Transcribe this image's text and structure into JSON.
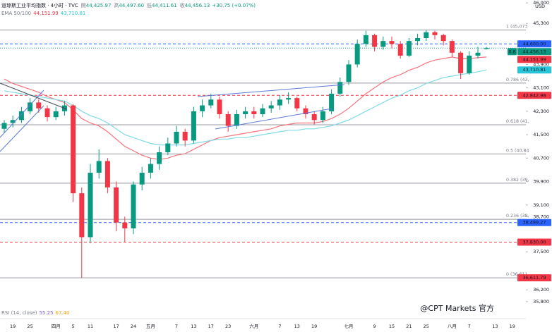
{
  "header": {
    "title": "道琼斯工业平均指数 · 4小时 · TVC",
    "fields": [
      {
        "label": "開",
        "value": "44,425.97"
      },
      {
        "label": "高",
        "value": "44,497.60"
      },
      {
        "label": "低",
        "value": "44,411.61"
      },
      {
        "label": "收",
        "value": "44,456.13"
      }
    ],
    "change": "+30.75 (+0.07%)",
    "currency": "USD"
  },
  "rsi": {
    "label": "RSI (14, close)",
    "values": [
      "55.25",
      "67.40"
    ]
  },
  "watermark": "@CPT Markets 官方",
  "chart_data": {
    "type": "candlestick",
    "categories": [
      null,
      "19",
      null,
      "25",
      null,
      null,
      "四月",
      null,
      "5",
      null,
      "11",
      null,
      null,
      "17",
      null,
      "24",
      null,
      "五月",
      null,
      null,
      "7",
      null,
      "13",
      null,
      "17",
      null,
      "23",
      null,
      null,
      "六月",
      null,
      null,
      "7",
      null,
      "13",
      null,
      "19",
      null,
      null,
      null,
      "七月",
      null,
      null,
      "9",
      null,
      "15",
      null,
      "21",
      null,
      "25",
      null,
      null,
      "八月",
      null,
      "7",
      null,
      null,
      "13",
      null,
      "19"
    ],
    "open": [
      41700,
      41900,
      42000,
      42300,
      42600,
      42400,
      42100,
      42300,
      42500,
      39500,
      38000,
      40200,
      40600,
      39700,
      38500,
      38300,
      39800,
      40200,
      40500,
      40900,
      41200,
      41600,
      41300,
      42300,
      42500,
      42700,
      42200,
      41800,
      42200,
      42300,
      42200,
      42400,
      42500,
      42700,
      42750,
      42400,
      42200,
      42000,
      42300,
      42900,
      43300,
      43900,
      44600,
      44900,
      44500,
      44700,
      44600,
      44200,
      44700,
      44800,
      45000,
      44900,
      44700,
      44300,
      43600,
      44200,
      44425.97,
      null,
      null,
      null
    ],
    "high": [
      42000,
      42150,
      42450,
      42750,
      42700,
      42500,
      42450,
      42650,
      42550,
      39700,
      40500,
      41000,
      40700,
      39900,
      38700,
      39900,
      40400,
      40700,
      41100,
      41400,
      41800,
      41700,
      42450,
      42700,
      42900,
      42800,
      42300,
      42350,
      42450,
      42450,
      42550,
      42650,
      42850,
      42950,
      42800,
      42500,
      42300,
      42450,
      43050,
      43450,
      44050,
      44750,
      45050,
      44950,
      44850,
      44850,
      44700,
      44800,
      44950,
      45073,
      45050,
      44950,
      44750,
      44350,
      44350,
      44500,
      44497.6,
      null,
      null,
      null
    ],
    "low": [
      41550,
      41750,
      41900,
      42200,
      42250,
      41950,
      42000,
      42150,
      39200,
      36611.79,
      37800,
      40000,
      39500,
      38200,
      37830,
      38100,
      39600,
      40000,
      40300,
      40800,
      41100,
      41100,
      41200,
      42100,
      42400,
      42050,
      41600,
      41700,
      42050,
      42050,
      42100,
      42250,
      42350,
      42550,
      42300,
      42050,
      41850,
      41900,
      42200,
      42800,
      43200,
      43800,
      44500,
      44350,
      44400,
      44450,
      44100,
      44150,
      44550,
      44700,
      44750,
      44550,
      44150,
      43400,
      43550,
      44100,
      44411.61,
      null,
      null,
      null
    ],
    "close": [
      41900,
      42000,
      42300,
      42600,
      42400,
      42100,
      42300,
      42500,
      39500,
      38000,
      40200,
      40600,
      39700,
      38500,
      38300,
      39800,
      40200,
      40500,
      40900,
      41200,
      41600,
      41300,
      42300,
      42500,
      42700,
      42200,
      41800,
      42200,
      42300,
      42200,
      42400,
      42500,
      42700,
      42750,
      42400,
      42200,
      42000,
      42300,
      42900,
      43300,
      43900,
      44600,
      44900,
      44500,
      44700,
      44600,
      44200,
      44700,
      44800,
      45000,
      44900,
      44700,
      44300,
      43600,
      44200,
      44300,
      44456.13,
      null,
      null,
      null
    ],
    "up_color": "#089981",
    "down_color": "#f23645",
    "ema": {
      "label": "EMA 50/100",
      "series": [
        {
          "color": "#f7737c",
          "value_label": "44,151.99",
          "values": [
            43400,
            43250,
            43150,
            43050,
            42950,
            42800,
            42700,
            42600,
            42350,
            42050,
            41900,
            41800,
            41600,
            41350,
            41100,
            40950,
            40800,
            40700,
            40650,
            40700,
            40800,
            40850,
            41000,
            41150,
            41300,
            41400,
            41450,
            41500,
            41550,
            41600,
            41650,
            41700,
            41800,
            41850,
            41900,
            41900,
            41900,
            41950,
            42050,
            42200,
            42400,
            42650,
            42900,
            43100,
            43300,
            43450,
            43550,
            43700,
            43800,
            43950,
            44050,
            44100,
            44150,
            44100,
            44100,
            44130,
            44151.99,
            null,
            null,
            null
          ]
        },
        {
          "color": "#7fdbe6",
          "value_label": "43,710.81",
          "values": [
            43000,
            42950,
            42900,
            42850,
            42800,
            42750,
            42700,
            42650,
            42500,
            42300,
            42150,
            42050,
            41900,
            41700,
            41500,
            41400,
            41300,
            41200,
            41150,
            41150,
            41150,
            41150,
            41200,
            41250,
            41300,
            41350,
            41350,
            41400,
            41400,
            41450,
            41500,
            41550,
            41600,
            41650,
            41650,
            41700,
            41700,
            41750,
            41800,
            41900,
            42000,
            42150,
            42300,
            42450,
            42600,
            42750,
            42850,
            43000,
            43100,
            43250,
            43350,
            43450,
            43500,
            43550,
            43600,
            43650,
            43710.81,
            null,
            null,
            null
          ]
        }
      ]
    },
    "ylim": [
      35700,
      46100
    ],
    "yticks": [
      {
        "value": 46000,
        "label": "46,000"
      },
      {
        "value": 45300,
        "label": "45,300"
      },
      {
        "value": 43900,
        "label": "43,900"
      },
      {
        "value": 43100,
        "label": "43,100"
      },
      {
        "value": 42300,
        "label": "42,300"
      },
      {
        "value": 41500,
        "label": "41,500"
      },
      {
        "value": 40700,
        "label": "40,700"
      },
      {
        "value": 39900,
        "label": "39,900"
      },
      {
        "value": 39100,
        "label": "39,100"
      },
      {
        "value": 38700,
        "label": "38,700"
      },
      {
        "value": 37500,
        "label": "37,500"
      },
      {
        "value": 36200,
        "label": "36,200"
      },
      {
        "value": 35800,
        "label": "35,800"
      }
    ],
    "grid": false,
    "fib_levels": [
      {
        "value": 45073,
        "label": "1 (45,073"
      },
      {
        "value": 43262,
        "label": "0.786 (43,"
      },
      {
        "value": 41840,
        "label": "0.618 (41,"
      },
      {
        "value": 40842,
        "label": "0.5 (40,84"
      },
      {
        "value": 39844,
        "label": "0.382 (39,"
      },
      {
        "value": 38609,
        "label": "0.236 (38,"
      },
      {
        "value": 36611.79,
        "label": "0 (36,611"
      }
    ],
    "price_lines": [
      {
        "value": 44600,
        "label": "44,600.00",
        "color": "#2962ff",
        "style": "dashed"
      },
      {
        "value": 44456.13,
        "label": "44,456.13",
        "color": "#089981",
        "style": "dotted",
        "tag": "0.8"
      },
      {
        "value": 42842.98,
        "label": "42,842.98",
        "color": "#f23645",
        "style": "dashed"
      },
      {
        "value": 38499.27,
        "label": "38,499.27",
        "color": "#2962ff",
        "style": "dashed"
      },
      {
        "value": 37830,
        "label": "37,830.00",
        "color": "#f23645",
        "style": "dashed"
      },
      {
        "value": 36611.79,
        "label": "36,611.79",
        "color": "#f23645",
        "style": "none"
      }
    ]
  }
}
